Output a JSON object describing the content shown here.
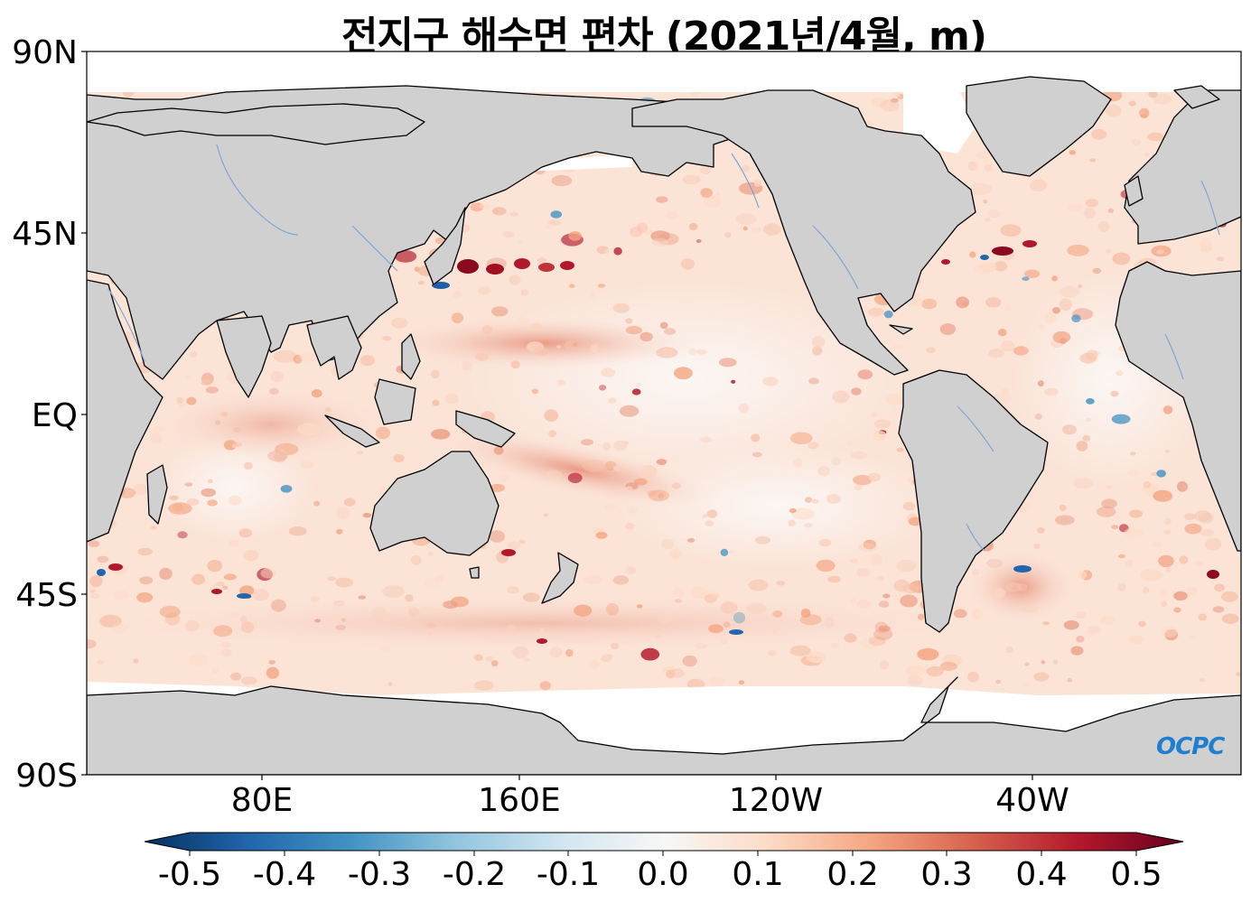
{
  "title": "전지구 해수면 편차 (2021년/4월, m)",
  "lat_labels": [
    "90N",
    "45N",
    "EQ",
    "45S",
    "90S"
  ],
  "lon_labels": [
    "80E",
    "160E",
    "120W",
    "40W"
  ],
  "colorbar": {
    "ticks": [
      "-0.5",
      "-0.4",
      "-0.3",
      "-0.2",
      "-0.1",
      "0.0",
      "0.1",
      "0.2",
      "0.3",
      "0.4",
      "0.5"
    ],
    "colors": [
      "#053061",
      "#2166ac",
      "#4393c3",
      "#92c5de",
      "#d1e5f0",
      "#f7f7f7",
      "#fddbc7",
      "#f4a582",
      "#d6604d",
      "#b2182b",
      "#67001f"
    ]
  },
  "logo": "OCPC",
  "colors": {
    "land": "#d0d0d0",
    "ice": "#ffffff",
    "ocean_base": "#fbe3d6",
    "coast": "#000000",
    "river": "#7ea6d8"
  }
}
